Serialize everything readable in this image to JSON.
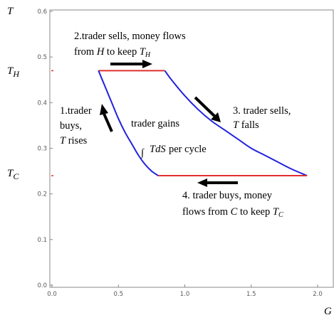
{
  "chart_data": {
    "type": "line",
    "title": "",
    "xlabel": "G",
    "ylabel": "T",
    "xlim": [
      0,
      2.0
    ],
    "ylim": [
      0,
      0.6
    ],
    "x_ticks": [
      "0.0",
      "0.5",
      "1.0",
      "1.5",
      "2.0"
    ],
    "y_ticks": [
      "0.0",
      "0.1",
      "0.2",
      "0.3",
      "0.4",
      "0.5",
      "0.6"
    ],
    "x_tick_values": [
      0,
      0.5,
      1.0,
      1.5,
      2.0
    ],
    "y_tick_values": [
      0,
      0.1,
      0.2,
      0.3,
      0.4,
      0.5,
      0.6
    ],
    "T_H": 0.47,
    "T_C": 0.24,
    "series": [
      {
        "color": "#e03030",
        "x": [
          0.35,
          0.85
        ],
        "y": [
          0.47,
          0.47
        ]
      },
      {
        "color": "#2222e0",
        "x": [
          0.85,
          0.9,
          1.0,
          1.1,
          1.2,
          1.3,
          1.4,
          1.5,
          1.6,
          1.7,
          1.8,
          1.92
        ],
        "y": [
          0.47,
          0.45,
          0.415,
          0.385,
          0.36,
          0.34,
          0.32,
          0.3,
          0.285,
          0.27,
          0.255,
          0.24
        ]
      },
      {
        "color": "#e03030",
        "x": [
          0.8,
          1.92
        ],
        "y": [
          0.24,
          0.24
        ]
      },
      {
        "color": "#2222e0",
        "x": [
          0.8,
          0.75,
          0.7,
          0.65,
          0.6,
          0.55,
          0.5,
          0.45,
          0.4,
          0.35
        ],
        "y": [
          0.24,
          0.25,
          0.265,
          0.285,
          0.31,
          0.335,
          0.365,
          0.4,
          0.435,
          0.47
        ]
      }
    ]
  },
  "axis_labels": {
    "y": "T",
    "x": "G",
    "th_main": "T",
    "th_sub": "H",
    "tc_main": "T",
    "tc_sub": "C"
  },
  "annotations": {
    "step1": {
      "line1": "1.trader",
      "line2": "buys,",
      "line3_var": "T",
      "line3_rest": " rises"
    },
    "step2": {
      "line1": "2.trader sells, money flows",
      "line2_pre": "from ",
      "line2_var": "H",
      "line2_mid": " to keep ",
      "line2_T": "T",
      "line2_sub": "H"
    },
    "step3": {
      "line1": "3. trader sells,",
      "line2_var": "T",
      "line2_rest": " falls"
    },
    "step4": {
      "line1": "4. trader buys, money",
      "line2_pre": "flows from ",
      "line2_var": "C",
      "line2_mid": " to keep ",
      "line2_T": "T",
      "line2_sub": "C"
    },
    "center": {
      "line1": "trader gains",
      "integral": "∫",
      "integrand": "TdS",
      "rest": " per cycle"
    }
  },
  "colors": {
    "isotherm": "#e03030",
    "adiabat": "#2222e0",
    "arrow": "#000000",
    "frame": "#8a8a8a"
  }
}
